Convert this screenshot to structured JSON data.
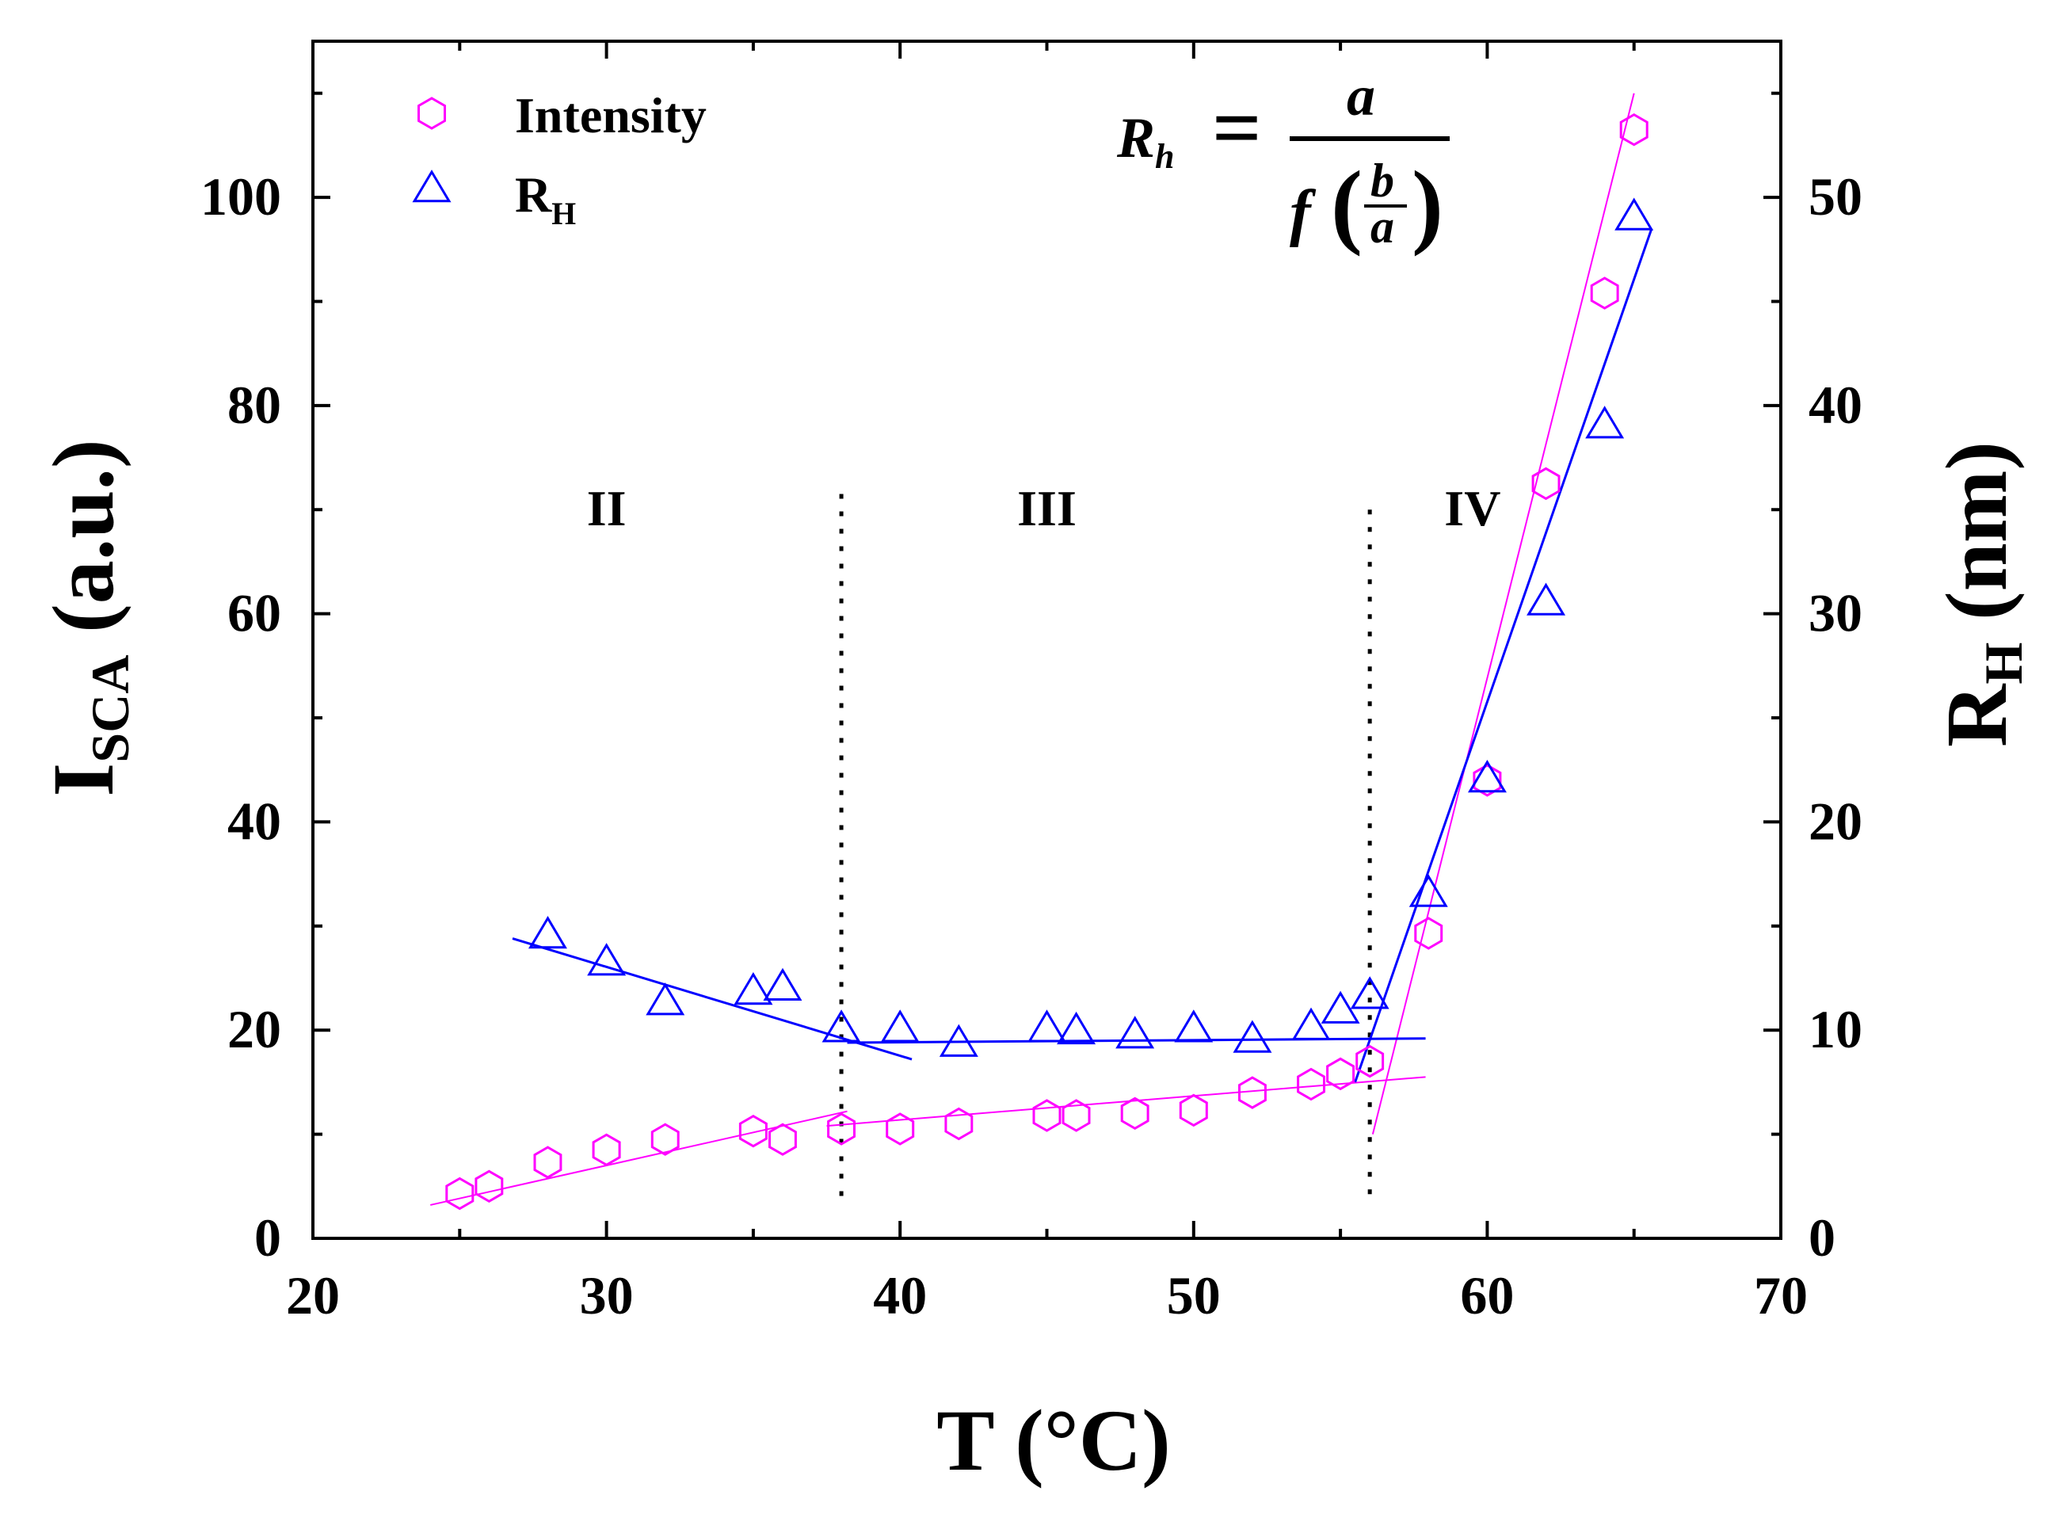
{
  "chart_data": {
    "type": "scatter",
    "xlabel": "T (°C)",
    "ylabel_left": {
      "main": "I",
      "sub": "SCA",
      "rest": " (a.u.)"
    },
    "ylabel_right": {
      "main": "R",
      "sub": "H",
      "rest": " (nm)"
    },
    "xlim": [
      20,
      70
    ],
    "ylim_left": [
      0,
      115
    ],
    "ylim_right": [
      0,
      57.5
    ],
    "xticks": [
      20,
      30,
      40,
      50,
      60,
      70
    ],
    "yticks_left": [
      0,
      20,
      40,
      60,
      80,
      100
    ],
    "yticks_right": [
      0,
      10,
      20,
      30,
      40,
      50
    ],
    "regions": [
      {
        "label": "II",
        "x": 30
      },
      {
        "label": "III",
        "x": 45
      },
      {
        "label": "IV",
        "x": 59.5
      }
    ],
    "region_dividers": [
      38,
      56
    ],
    "formula": {
      "lhs": "R",
      "lhs_sub": "h",
      "eq": "=",
      "numerator": "a",
      "denominator_func": "f",
      "frac_num": "b",
      "frac_den": "a"
    },
    "series": [
      {
        "name": "Intensity",
        "sub": "",
        "color": "#ff00ff",
        "marker": "hexagon",
        "axis": "left",
        "x": [
          25,
          26,
          28,
          30,
          32,
          35,
          36,
          38,
          40,
          42,
          45,
          46,
          48,
          50,
          52,
          54,
          55,
          56,
          58,
          60,
          62,
          64,
          65
        ],
        "y": [
          4.3,
          5,
          7.3,
          8.5,
          9.5,
          10.3,
          9.5,
          10.5,
          10.5,
          11,
          11.8,
          11.8,
          12,
          12.3,
          14,
          14.8,
          15.8,
          17,
          29.3,
          44,
          72.5,
          90.8,
          106.5
        ],
        "fits": [
          {
            "x": [
              24,
              38.2
            ],
            "y": [
              3.2,
              12.2
            ]
          },
          {
            "x": [
              37.5,
              57.9
            ],
            "y": [
              10.8,
              15.5
            ]
          },
          {
            "x": [
              56.1,
              65
            ],
            "y": [
              10,
              110
            ]
          }
        ]
      },
      {
        "name": "R",
        "sub": "H",
        "color": "#0000ff",
        "marker": "triangle",
        "axis": "right",
        "x": [
          28,
          30,
          32,
          35,
          36,
          38,
          40,
          42,
          45,
          46,
          48,
          50,
          52,
          54,
          55,
          56,
          58,
          60,
          62,
          64,
          65
        ],
        "y": [
          14.5,
          13.2,
          11.3,
          11.8,
          12,
          10,
          10,
          9.3,
          10,
          9.9,
          9.7,
          10,
          9.5,
          10.1,
          10.9,
          11.6,
          16.5,
          22,
          30.5,
          39,
          49
        ],
        "fits": [
          {
            "x": [
              26.8,
              40.4
            ],
            "y": [
              14.4,
              8.6
            ]
          },
          {
            "x": [
              38.2,
              57.9
            ],
            "y": [
              9.4,
              9.6
            ]
          },
          {
            "x": [
              55.5,
              65.6
            ],
            "y": [
              7.5,
              48.5
            ]
          }
        ]
      }
    ]
  }
}
